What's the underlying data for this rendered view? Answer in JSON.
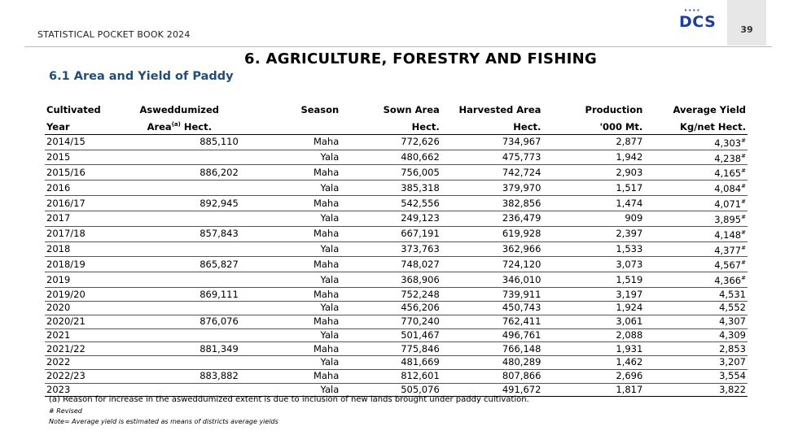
{
  "header": {
    "title": "STATISTICAL POCKET BOOK 2024",
    "logo_text": "DCS",
    "page_number": "39",
    "brand_color": "#1d3f9a"
  },
  "chapter_title": "6.  AGRICULTURE, FORESTRY AND FISHING",
  "section_title": "6.1 Area and Yield of Paddy",
  "table": {
    "headers": {
      "col1_line1": "Cultivated",
      "col1_line2": "Year",
      "col2_line1": "Asweddumized",
      "col2_line2_a": "Area",
      "col2_line2_sup": "(a)",
      "col2_line2_b": " Hect.",
      "col3_line1": "Season",
      "col4_line1": "Sown Area",
      "col4_line2": "Hect.",
      "col5_line1": "Harvested Area",
      "col5_line2": "Hect.",
      "col6_line1": "Production",
      "col6_line2": "'000 Mt.",
      "col7_line1": "Average Yield",
      "col7_line2": "Kg/net Hect."
    },
    "rows": [
      {
        "year": "2014/15",
        "asweddumized": "885,110",
        "season": "Maha",
        "sown": "772,626",
        "harvested": "734,967",
        "production": "2,877",
        "yield": "4,303",
        "revised": "#"
      },
      {
        "year": "2015",
        "asweddumized": "",
        "season": "Yala",
        "sown": "480,662",
        "harvested": "475,773",
        "production": "1,942",
        "yield": "4,238",
        "revised": "#"
      },
      {
        "year": "2015/16",
        "asweddumized": "886,202",
        "season": "Maha",
        "sown": "756,005",
        "harvested": "742,724",
        "production": "2,903",
        "yield": "4,165",
        "revised": "#"
      },
      {
        "year": "2016",
        "asweddumized": "",
        "season": "Yala",
        "sown": "385,318",
        "harvested": "379,970",
        "production": "1,517",
        "yield": "4,084",
        "revised": "#"
      },
      {
        "year": "2016/17",
        "asweddumized": "892,945",
        "season": "Maha",
        "sown": "542,556",
        "harvested": "382,856",
        "production": "1,474",
        "yield": "4,071",
        "revised": "#"
      },
      {
        "year": "2017",
        "asweddumized": "",
        "season": "Yala",
        "sown": "249,123",
        "harvested": "236,479",
        "production": "909",
        "yield": "3,895",
        "revised": "#"
      },
      {
        "year": "2017/18",
        "asweddumized": "857,843",
        "season": "Maha",
        "sown": "667,191",
        "harvested": "619,928",
        "production": "2,397",
        "yield": "4,148",
        "revised": "#"
      },
      {
        "year": "2018",
        "asweddumized": "",
        "season": "Yala",
        "sown": "373,763",
        "harvested": "362,966",
        "production": "1,533",
        "yield": "4,377",
        "revised": "#"
      },
      {
        "year": "2018/19",
        "asweddumized": "865,827",
        "season": "Maha",
        "sown": "748,027",
        "harvested": "724,120",
        "production": "3,073",
        "yield": "4,567",
        "revised": "#"
      },
      {
        "year": "2019",
        "asweddumized": "",
        "season": "Yala",
        "sown": "368,906",
        "harvested": "346,010",
        "production": "1,519",
        "yield": "4,366",
        "revised": "#"
      },
      {
        "year": "2019/20",
        "asweddumized": "869,111",
        "season": "Maha",
        "sown": "752,248",
        "harvested": "739,911",
        "production": "3,197",
        "yield": "4,531",
        "revised": ""
      },
      {
        "year": "2020",
        "asweddumized": "",
        "season": "Yala",
        "sown": "456,206",
        "harvested": "450,743",
        "production": "1,924",
        "yield": "4,552",
        "revised": ""
      },
      {
        "year": "2020/21",
        "asweddumized": "876,076",
        "season": "Maha",
        "sown": "770,240",
        "harvested": "762,411",
        "production": "3,061",
        "yield": "4,307",
        "revised": ""
      },
      {
        "year": "2021",
        "asweddumized": "",
        "season": "Yala",
        "sown": "501,467",
        "harvested": "496,761",
        "production": "2,088",
        "yield": "4,309",
        "revised": ""
      },
      {
        "year": "2021/22",
        "asweddumized": "881,349",
        "season": "Maha",
        "sown": "775,846",
        "harvested": "766,148",
        "production": "1,931",
        "yield": "2,853",
        "revised": ""
      },
      {
        "year": "2022",
        "asweddumized": "",
        "season": "Yala",
        "sown": "481,669",
        "harvested": "480,289",
        "production": "1,462",
        "yield": "3,207",
        "revised": ""
      },
      {
        "year": "2022/23",
        "asweddumized": "883,882",
        "season": "Maha",
        "sown": "812,601",
        "harvested": "807,866",
        "production": "2,696",
        "yield": "3,554",
        "revised": ""
      },
      {
        "year": "2023",
        "asweddumized": "",
        "season": "Yala",
        "sown": "505,076",
        "harvested": "491,672",
        "production": "1,817",
        "yield": "3,822",
        "revised": ""
      }
    ]
  },
  "notes": {
    "note_a": "(a) Reason for increase in the asweddumized extent is due to inclusion of new lands brought under paddy cultivation.",
    "note_revised": "# Revised",
    "note_yield": "Note= Average yield is estimated as means of districts average yields"
  }
}
